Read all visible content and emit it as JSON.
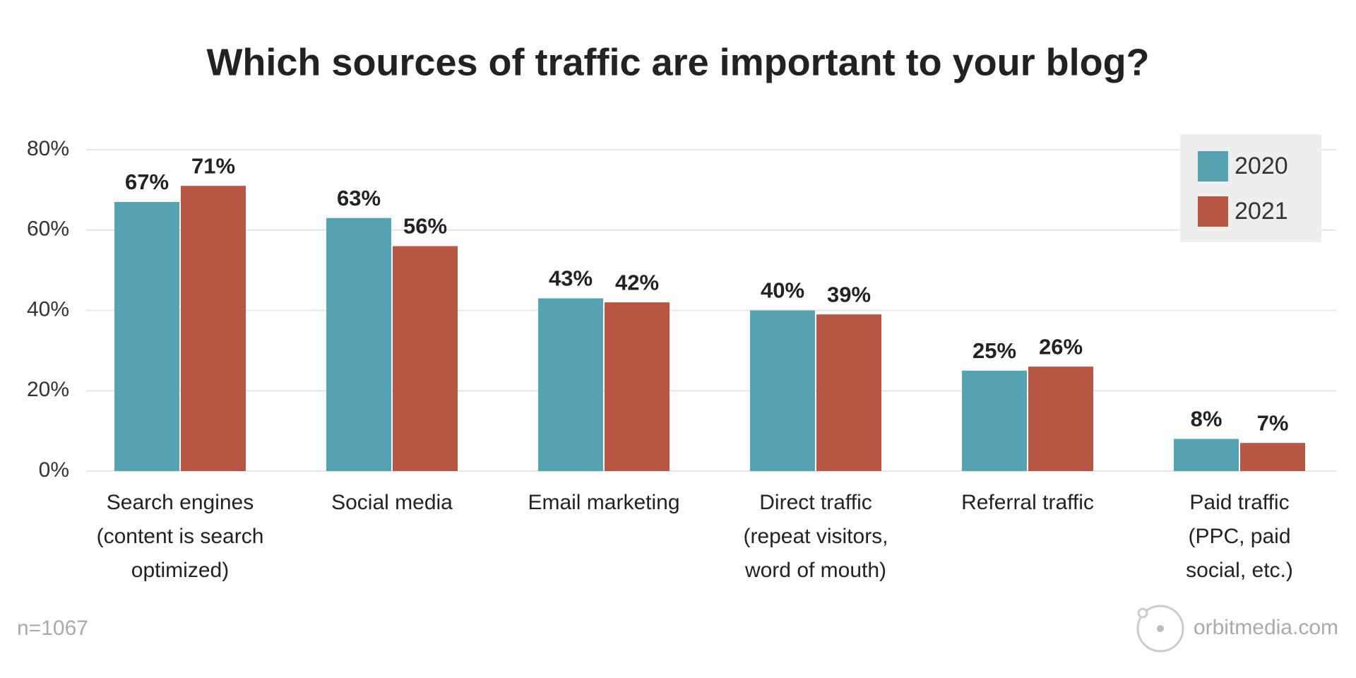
{
  "chart_data": {
    "type": "bar",
    "title": "Which sources of traffic are important to your blog?",
    "categories": [
      [
        "Search engines",
        "(content is search",
        "optimized)"
      ],
      [
        "Social media"
      ],
      [
        "Email marketing"
      ],
      [
        "Direct traffic",
        "(repeat visitors,",
        "word of mouth)"
      ],
      [
        "Referral traffic"
      ],
      [
        "Paid traffic",
        "(PPC, paid",
        "social, etc.)"
      ]
    ],
    "series": [
      {
        "name": "2020",
        "color": "#55a3b0",
        "values": [
          67,
          63,
          43,
          40,
          25,
          8
        ],
        "value_labels": [
          "67%",
          "63%",
          "43%",
          "40%",
          "25%",
          "8%"
        ]
      },
      {
        "name": "2021",
        "color": "#b85744",
        "values": [
          71,
          56,
          42,
          39,
          26,
          7
        ],
        "value_labels": [
          "71%",
          "56%",
          "42%",
          "39%",
          "26%",
          "7%"
        ]
      }
    ],
    "ylim": [
      0,
      80
    ],
    "yticks": [
      {
        "value": 0,
        "label": "0%"
      },
      {
        "value": 20,
        "label": "20%"
      },
      {
        "value": 40,
        "label": "40%"
      },
      {
        "value": 60,
        "label": "60%"
      },
      {
        "value": 80,
        "label": "80%"
      }
    ],
    "grid": true,
    "legend_position": "upper right",
    "footnote": "n=1067",
    "source": "orbitmedia.com"
  }
}
